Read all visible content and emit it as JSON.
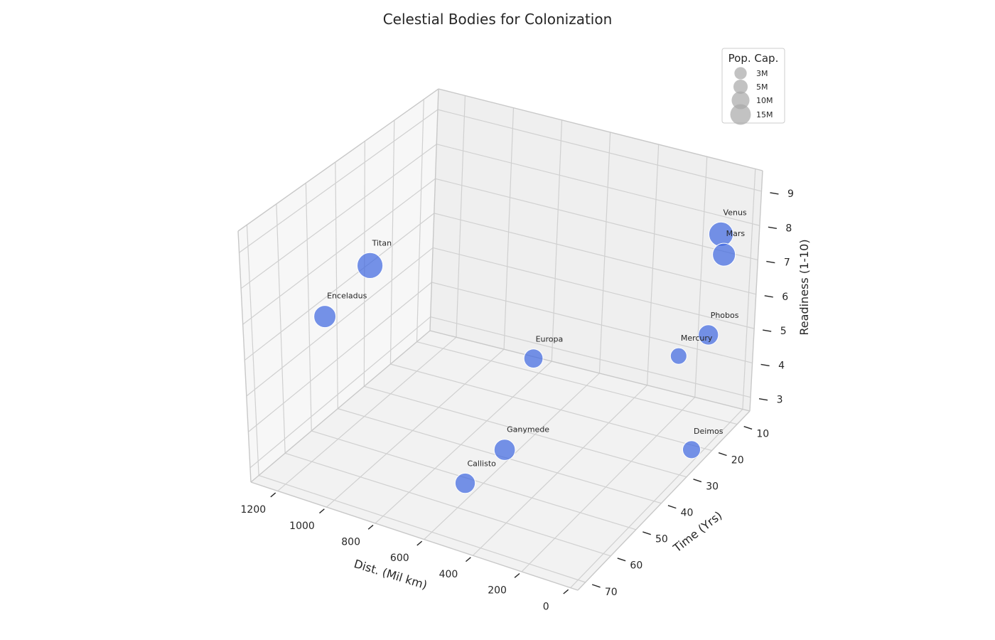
{
  "chart_data": {
    "type": "scatter",
    "projection": "3d",
    "title": "Celestial Bodies for Colonization",
    "xlabel": "Dist. (Mil km)",
    "ylabel": "Time (Yrs)",
    "zlabel": "Readiness (1-10)",
    "x_ticks": [
      "0",
      "200",
      "400",
      "600",
      "800",
      "1000",
      "1200"
    ],
    "y_ticks": [
      "10",
      "20",
      "30",
      "40",
      "50",
      "60",
      "70"
    ],
    "z_ticks": [
      "3",
      "4",
      "5",
      "6",
      "7",
      "8",
      "9"
    ],
    "grid": true,
    "marker_color": "#4169e1",
    "legend": {
      "title": "Pop. Cap.",
      "position": "top-right",
      "entries": [
        {
          "label": "3M",
          "value": 3
        },
        {
          "label": "5M",
          "value": 5
        },
        {
          "label": "10M",
          "value": 10
        },
        {
          "label": "15M",
          "value": 15
        }
      ]
    },
    "points": [
      {
        "label": "Venus",
        "distance": 41,
        "time": 15,
        "readiness": 9,
        "population": 10
      },
      {
        "label": "Mars",
        "distance": 78,
        "time": 10,
        "readiness": 8,
        "population": 8
      },
      {
        "label": "Mercury",
        "distance": 92,
        "time": 25,
        "readiness": 6,
        "population": 2
      },
      {
        "label": "Phobos",
        "distance": 78,
        "time": 15,
        "readiness": 6,
        "population": 5
      },
      {
        "label": "Deimos",
        "distance": 78,
        "time": 20,
        "readiness": 3,
        "population": 3
      },
      {
        "label": "Europa",
        "distance": 628,
        "time": 30,
        "readiness": 5,
        "population": 4
      },
      {
        "label": "Enceladus",
        "distance": 1272,
        "time": 50,
        "readiness": 6,
        "population": 7
      },
      {
        "label": "Titan",
        "distance": 1200,
        "time": 40,
        "readiness": 7,
        "population": 12
      },
      {
        "label": "Ganymede",
        "distance": 628,
        "time": 40,
        "readiness": 3,
        "population": 6
      },
      {
        "label": "Callisto",
        "distance": 628,
        "time": 55,
        "readiness": 3,
        "population": 5
      }
    ]
  }
}
